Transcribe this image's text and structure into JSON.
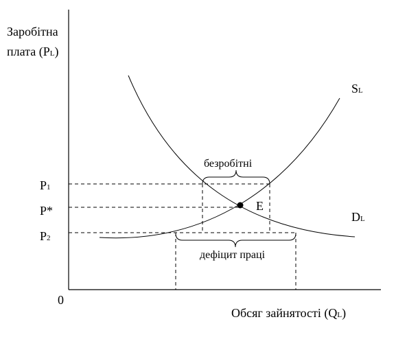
{
  "axes": {
    "origin": "0",
    "y_label": {
      "line1": "Заробітна",
      "line2_main": "плата (P",
      "line2_sub": "L",
      "line2_end": ")"
    },
    "x_label": {
      "main": "Обсяг зайнятості (Q",
      "sub": "L",
      "end": ")"
    }
  },
  "curves": {
    "supply": {
      "main": "S",
      "sub": "L"
    },
    "demand": {
      "main": "D",
      "sub": "L"
    }
  },
  "prices": {
    "p1": {
      "main": "P",
      "sub": "1"
    },
    "p_star": "P*",
    "p2": {
      "main": "P",
      "sub": "2"
    }
  },
  "equilibrium": "E",
  "annotations": {
    "unemployed": "безробітні",
    "labor_deficit": "дефіцит праці"
  }
}
